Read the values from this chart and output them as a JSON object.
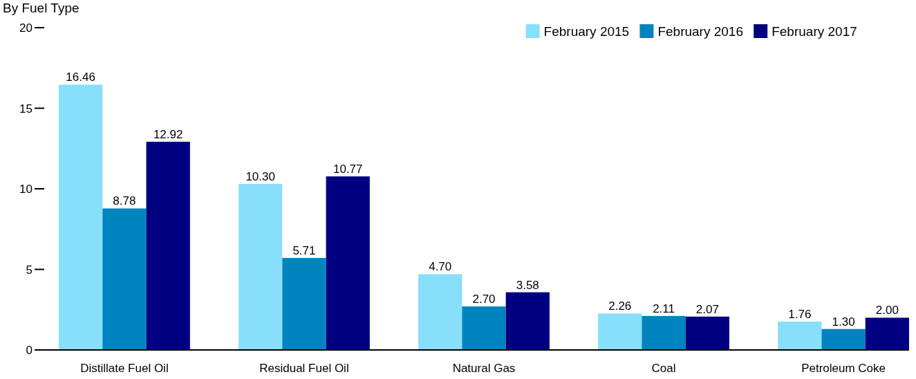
{
  "chart_data": {
    "type": "bar",
    "title": "By Fuel Type",
    "categories": [
      "Distillate Fuel Oil",
      "Residual Fuel Oil",
      "Natural Gas",
      "Coal",
      "Petroleum Coke"
    ],
    "series": [
      {
        "name": "February 2015",
        "color": "#87dffc",
        "values": [
          16.46,
          10.3,
          4.7,
          2.26,
          1.76
        ],
        "value_labels": [
          "16.46",
          "10.30",
          "4.70",
          "2.26",
          "1.76"
        ]
      },
      {
        "name": "February 2016",
        "color": "#0084c0",
        "values": [
          8.78,
          5.71,
          2.7,
          2.11,
          1.3
        ],
        "value_labels": [
          "8.78",
          "5.71",
          "2.70",
          "2.11",
          "1.30"
        ]
      },
      {
        "name": "February 2017",
        "color": "#000080",
        "values": [
          12.92,
          10.77,
          3.58,
          2.07,
          2.0
        ],
        "value_labels": [
          "12.92",
          "10.77",
          "3.58",
          "2.07",
          "2.00"
        ]
      }
    ],
    "ylim": [
      0,
      20
    ],
    "yticks": [
      0,
      5,
      10,
      15,
      20
    ],
    "legend": "top right"
  }
}
